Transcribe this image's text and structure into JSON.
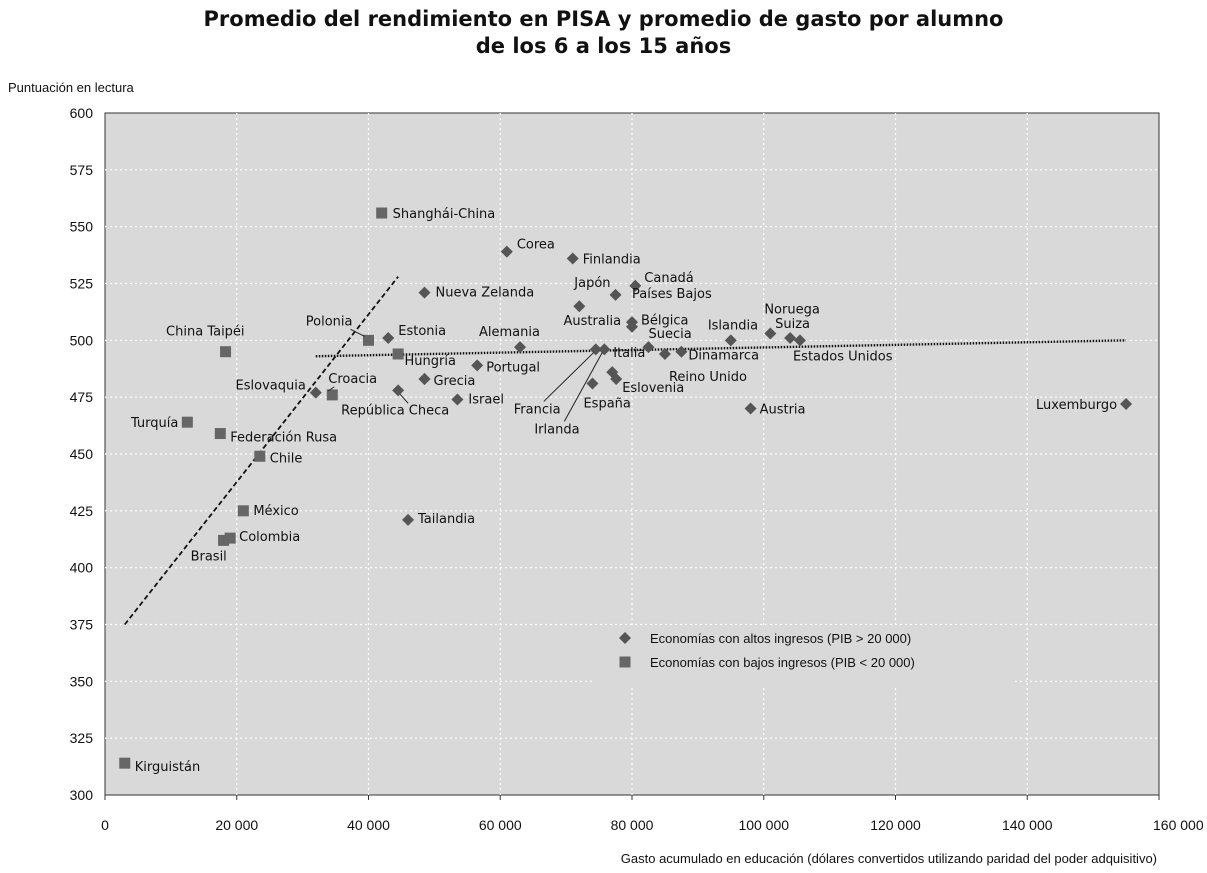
{
  "chart_data": {
    "type": "scatter",
    "title_lines": [
      "Promedio del rendimiento en PISA y promedio de gasto por alumno",
      "de los 6 a los 15 años"
    ],
    "ylabel": "Puntuación en lectura",
    "xlabel": "Gasto acumulado en educación (dólares convertidos utilizando paridad del poder adquisitivo)",
    "xlim": [
      0,
      160000
    ],
    "ylim": [
      300,
      600
    ],
    "x_ticks": [
      0,
      20000,
      40000,
      60000,
      80000,
      100000,
      120000,
      140000,
      160000
    ],
    "x_tick_labels": [
      "0",
      "20 000",
      "40 000",
      "60 000",
      "80 000",
      "100 000",
      "120 000",
      "140 000",
      "160 000"
    ],
    "y_ticks": [
      300,
      325,
      350,
      375,
      400,
      425,
      450,
      475,
      500,
      525,
      550,
      575,
      600
    ],
    "grid": true,
    "legend_position": "bottom-right",
    "legend": [
      {
        "marker": "diamond",
        "label": "Economías con altos ingresos (PIB > 20 000)"
      },
      {
        "marker": "square",
        "label": "Economías con bajos ingresos (PIB < 20 000)"
      }
    ],
    "series": [
      {
        "marker": "diamond",
        "points": [
          {
            "label": "Corea",
            "x": 61000,
            "y": 539
          },
          {
            "label": "Finlandia",
            "x": 71000,
            "y": 536
          },
          {
            "label": "Canadá",
            "x": 80500,
            "y": 524
          },
          {
            "label": "Japón",
            "x": 77500,
            "y": 520
          },
          {
            "label": "Nueva Zelanda",
            "x": 48500,
            "y": 521
          },
          {
            "label": "Australia",
            "x": 72000,
            "y": 515
          },
          {
            "label": "Países Bajos",
            "x": 80000,
            "y": 508
          },
          {
            "label": "Bélgica",
            "x": 80000,
            "y": 506
          },
          {
            "label": "Noruega",
            "x": 101000,
            "y": 503
          },
          {
            "label": "Islandia",
            "x": 95000,
            "y": 500
          },
          {
            "label": "Suiza",
            "x": 104000,
            "y": 501
          },
          {
            "label": "Estados Unidos",
            "x": 105500,
            "y": 500
          },
          {
            "label": "Estonia",
            "x": 43000,
            "y": 501
          },
          {
            "label": "Alemania",
            "x": 63000,
            "y": 497
          },
          {
            "label": "Suecia",
            "x": 82500,
            "y": 497
          },
          {
            "label": "Dinamarca",
            "x": 87500,
            "y": 495
          },
          {
            "label": "Reino Unido",
            "x": 85000,
            "y": 494
          },
          {
            "label": "Francia",
            "x": 74500,
            "y": 496
          },
          {
            "label": "Irlanda",
            "x": 75800,
            "y": 496
          },
          {
            "label": "Italia",
            "x": 77000,
            "y": 486
          },
          {
            "label": "Eslovenia",
            "x": 77600,
            "y": 483
          },
          {
            "label": "España",
            "x": 74000,
            "y": 481
          },
          {
            "label": "Hungría",
            "x": 48500,
            "y": 483
          },
          {
            "label": "Portugal",
            "x": 56500,
            "y": 489
          },
          {
            "label": "Eslovaquia",
            "x": 32000,
            "y": 477
          },
          {
            "label": "República Checa",
            "x": 44500,
            "y": 478
          },
          {
            "label": "Grecia",
            "x": 48500,
            "y": 483
          },
          {
            "label": "Israel",
            "x": 53500,
            "y": 474
          },
          {
            "label": "Austria",
            "x": 98000,
            "y": 470
          },
          {
            "label": "Luxemburgo",
            "x": 155000,
            "y": 472
          },
          {
            "label": "Tailandia",
            "x": 46000,
            "y": 421
          }
        ]
      },
      {
        "marker": "square",
        "points": [
          {
            "label": "Shanghái-China",
            "x": 42000,
            "y": 556
          },
          {
            "label": "Polonia",
            "x": 40000,
            "y": 500
          },
          {
            "label": "China Taipéi",
            "x": 18300,
            "y": 495
          },
          {
            "label": "Croacia",
            "x": 34500,
            "y": 476
          },
          {
            "label": "Turquía",
            "x": 12500,
            "y": 464
          },
          {
            "label": "Federación Rusa",
            "x": 17500,
            "y": 459
          },
          {
            "label": "Chile",
            "x": 23500,
            "y": 449
          },
          {
            "label": "México",
            "x": 21000,
            "y": 425
          },
          {
            "label": "Colombia",
            "x": 19000,
            "y": 413
          },
          {
            "label": "Brasil",
            "x": 18000,
            "y": 412
          },
          {
            "label": "Kirguistán",
            "x": 3000,
            "y": 314
          },
          {
            "label": "",
            "x": 44500,
            "y": 494
          }
        ]
      }
    ],
    "trend_lines": [
      {
        "style": "dashed",
        "from": {
          "x": 3000,
          "y": 375
        },
        "to": {
          "x": 44500,
          "y": 528
        }
      },
      {
        "style": "dotted",
        "from": {
          "x": 32000,
          "y": 493
        },
        "to": {
          "x": 155000,
          "y": 500
        }
      }
    ]
  }
}
